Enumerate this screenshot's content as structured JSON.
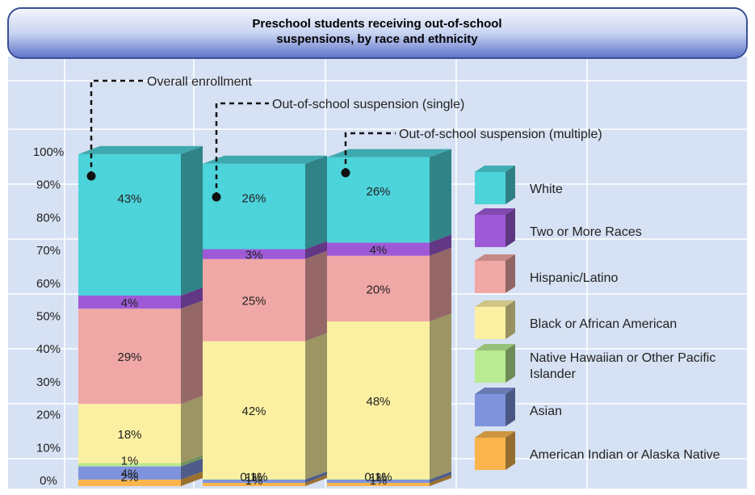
{
  "colors": {
    "plot_bg": "#d6e1f3",
    "grid": "#ffffff",
    "header_top": "#eef3fc",
    "header_bottom": "#5b72c8",
    "header_border": "#3c4f96"
  },
  "chart_data": {
    "type": "bar",
    "stacked": true,
    "title": "Preschool students receiving out-of-school suspensions, by race and ethnicity",
    "title_lines": [
      "Preschool students receiving out-of-school",
      "suspensions, by race and ethnicity"
    ],
    "xlabel": "",
    "ylabel": "",
    "ylim": [
      0,
      100
    ],
    "yticks": [
      0,
      10,
      20,
      30,
      40,
      50,
      60,
      70,
      80,
      90,
      100
    ],
    "ytick_labels": [
      "0%",
      "10%",
      "20%",
      "30%",
      "40%",
      "50%",
      "60%",
      "70%",
      "80%",
      "90%",
      "100%"
    ],
    "grid": true,
    "legend_position": "right",
    "categories": [
      "Overall enrollment",
      "Out-of-school suspension (single)",
      "Out-of-school suspension (multiple)"
    ],
    "series": [
      {
        "name": "American Indian or Alaska Native",
        "color": "#f9b54c",
        "values": [
          2,
          1,
          1
        ],
        "labels": [
          "2%",
          "1%",
          "1%"
        ]
      },
      {
        "name": "Asian",
        "color": "#7f93dc",
        "values": [
          4,
          1,
          1
        ],
        "labels": [
          "4%",
          "1%",
          "1%"
        ]
      },
      {
        "name": "Native Hawaiian or Other Pacific Islander",
        "color": "#b8eb92",
        "values": [
          1,
          0.1,
          0.1
        ],
        "labels": [
          "1%",
          "0.1%",
          "0.1%"
        ]
      },
      {
        "name": "Black or African American",
        "color": "#fbf0a2",
        "values": [
          18,
          42,
          48
        ],
        "labels": [
          "18%",
          "42%",
          "48%"
        ]
      },
      {
        "name": "Hispanic/Latino",
        "color": "#f0a8a6",
        "values": [
          29,
          25,
          20
        ],
        "labels": [
          "29%",
          "25%",
          "20%"
        ]
      },
      {
        "name": "Two or More Races",
        "color": "#9e5ad6",
        "values": [
          4,
          3,
          4
        ],
        "labels": [
          "4%",
          "3%",
          "4%"
        ]
      },
      {
        "name": "White",
        "color": "#4dd3da",
        "values": [
          43,
          26,
          26
        ],
        "labels": [
          "43%",
          "26%",
          "26%"
        ]
      }
    ]
  }
}
